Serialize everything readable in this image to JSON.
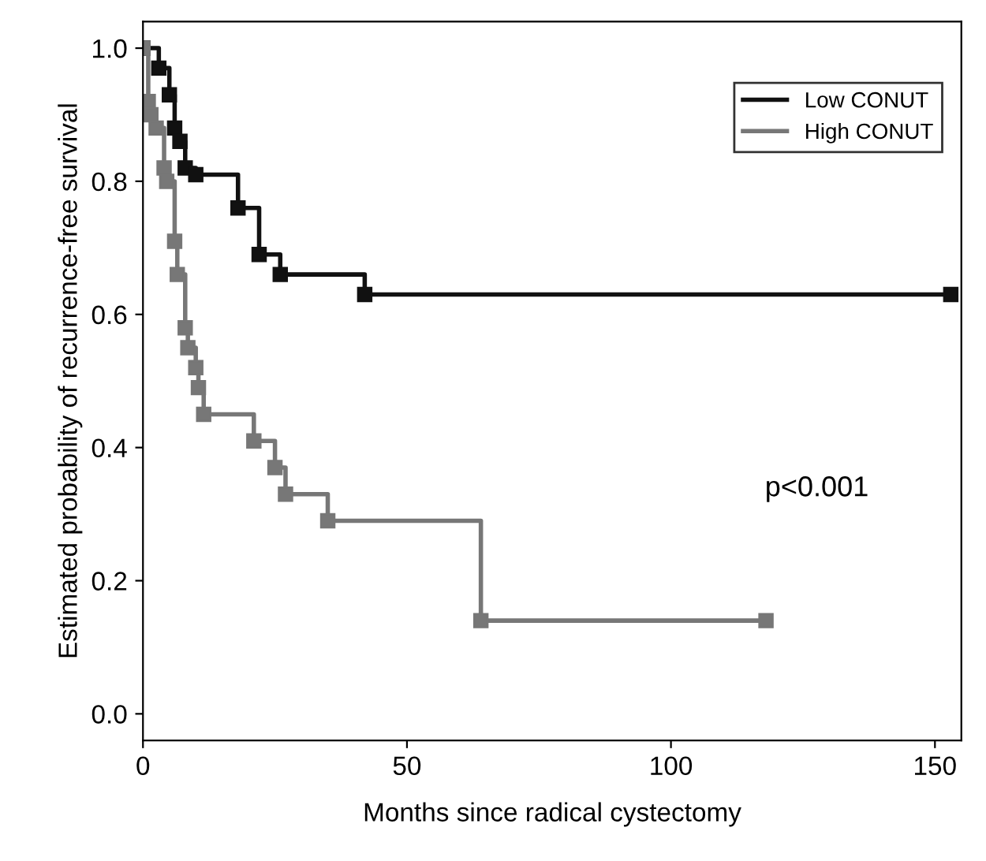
{
  "chart_data": {
    "type": "step",
    "xlabel": "Months since radical cystectomy",
    "ylabel": "Estimated probability of recurrence-free survival",
    "series": [
      {
        "name": "Low CONUT",
        "color": "#111111",
        "x": [
          0,
          3,
          5,
          6,
          7,
          8,
          10,
          18,
          22,
          26,
          42,
          153
        ],
        "values": [
          1.0,
          0.97,
          0.93,
          0.88,
          0.86,
          0.82,
          0.81,
          0.76,
          0.69,
          0.66,
          0.63,
          0.63
        ]
      },
      {
        "name": "High CONUT",
        "color": "#777777",
        "x": [
          0,
          1,
          1.5,
          2.5,
          4,
          4.5,
          6,
          6.5,
          8,
          8.5,
          10,
          10.5,
          11.5,
          21,
          25,
          27,
          35,
          64,
          118
        ],
        "values": [
          1.0,
          0.92,
          0.9,
          0.88,
          0.82,
          0.8,
          0.71,
          0.66,
          0.58,
          0.55,
          0.52,
          0.49,
          0.45,
          0.41,
          0.37,
          0.33,
          0.29,
          0.14,
          0.14
        ]
      }
    ],
    "xlim": [
      0,
      155
    ],
    "xticks": [
      0,
      50,
      100,
      150
    ],
    "ylim": [
      -0.04,
      1.04
    ],
    "yticks": [
      {
        "value": 0,
        "label": "0.0"
      },
      {
        "value": 0.2,
        "label": "0.2"
      },
      {
        "value": 0.4,
        "label": "0.4"
      },
      {
        "value": 0.6,
        "label": "0.6"
      },
      {
        "value": 0.8,
        "label": "0.8"
      },
      {
        "value": 1.0,
        "label": "1.0"
      }
    ],
    "annotations": [
      "p<0.001"
    ],
    "legend": "top right",
    "grid": false,
    "marker": "square",
    "line_style": "solid"
  }
}
